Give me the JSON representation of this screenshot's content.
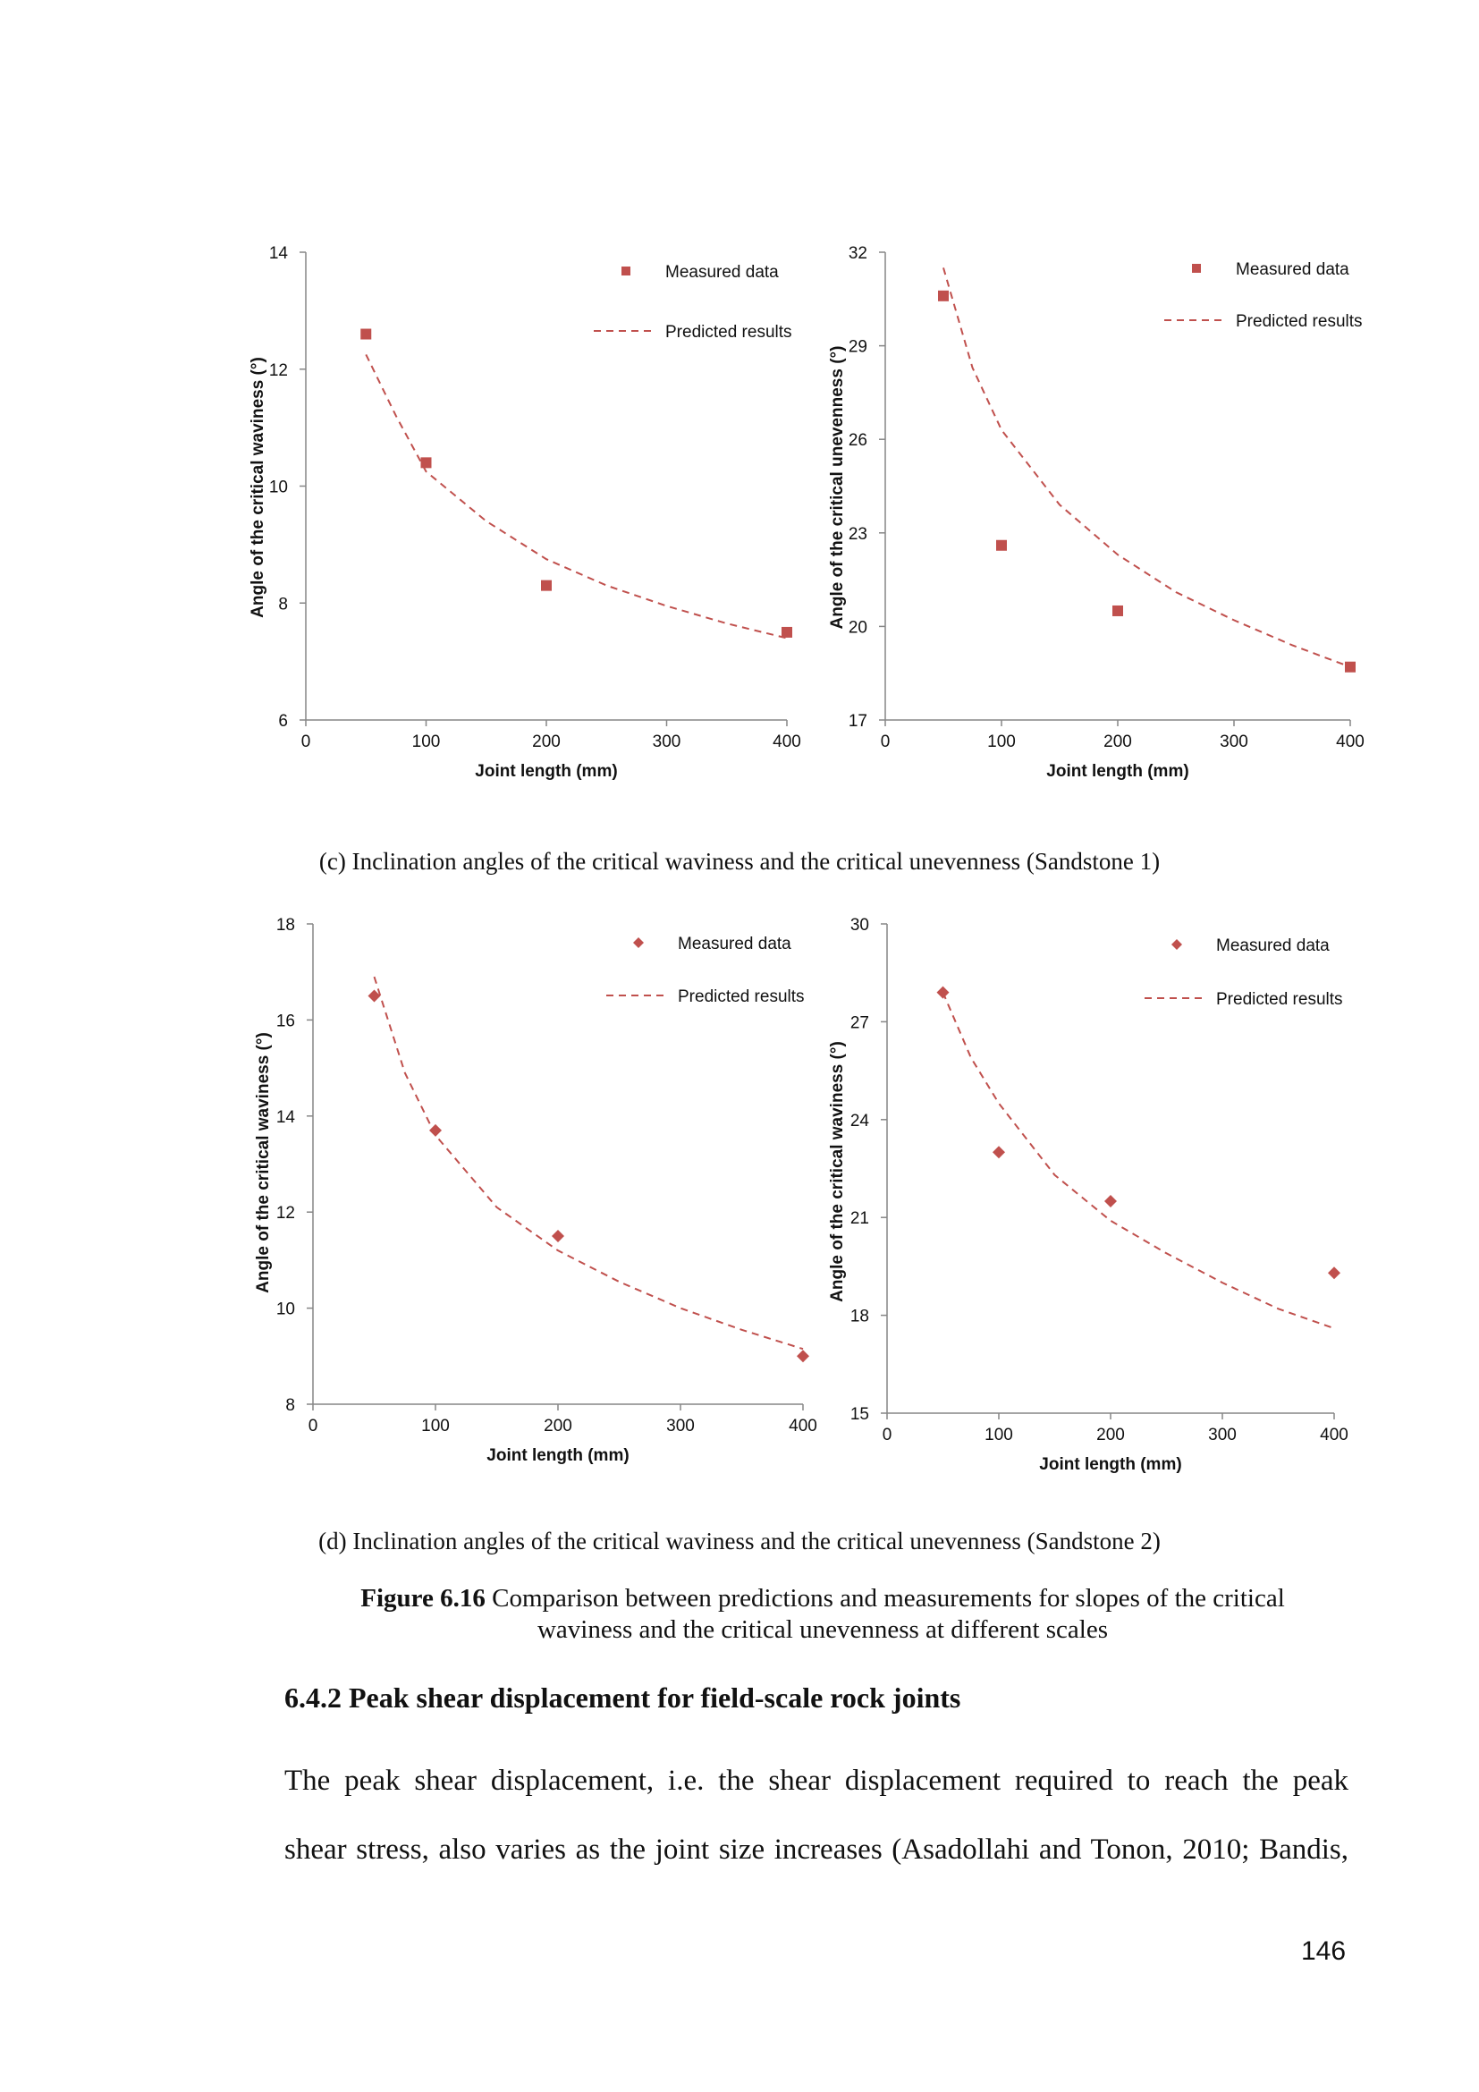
{
  "chart_data": [
    {
      "type": "scatter",
      "xlabel": "Joint length (mm)",
      "ylabel": "Angle of the critical waviness (°)",
      "xlim": [
        0,
        400
      ],
      "ylim": [
        6,
        14
      ],
      "xticks": [
        0,
        100,
        200,
        300,
        400
      ],
      "yticks": [
        6,
        8,
        10,
        12,
        14
      ],
      "marker": "square",
      "legend": {
        "measured": "Measured data",
        "predicted": "Predicted results",
        "position": "top-right"
      },
      "measured": {
        "x": [
          50,
          100,
          200,
          400
        ],
        "y": [
          12.6,
          10.4,
          8.3,
          7.5
        ]
      },
      "predicted": {
        "x": [
          50,
          75,
          100,
          150,
          200,
          250,
          300,
          350,
          400
        ],
        "y": [
          12.25,
          11.2,
          10.25,
          9.4,
          8.75,
          8.3,
          7.95,
          7.65,
          7.4
        ]
      }
    },
    {
      "type": "scatter",
      "xlabel": "Joint length (mm)",
      "ylabel": "Angle of the critical unevenness (°)",
      "xlim": [
        0,
        400
      ],
      "ylim": [
        17,
        32
      ],
      "xticks": [
        0,
        100,
        200,
        300,
        400
      ],
      "yticks": [
        17,
        20,
        23,
        26,
        29,
        32
      ],
      "marker": "square",
      "legend": {
        "measured": "Measured data",
        "predicted": "Predicted results",
        "position": "top-right"
      },
      "measured": {
        "x": [
          50,
          100,
          200,
          400
        ],
        "y": [
          30.6,
          22.6,
          20.5,
          18.7
        ]
      },
      "predicted": {
        "x": [
          50,
          75,
          100,
          150,
          200,
          250,
          300,
          350,
          400
        ],
        "y": [
          31.5,
          28.3,
          26.3,
          23.9,
          22.3,
          21.1,
          20.2,
          19.4,
          18.7
        ]
      }
    },
    {
      "type": "scatter",
      "xlabel": "Joint length (mm)",
      "ylabel": "Angle of the critical waviness (°)",
      "xlim": [
        0,
        400
      ],
      "ylim": [
        8,
        18
      ],
      "xticks": [
        0,
        100,
        200,
        300,
        400
      ],
      "yticks": [
        8,
        10,
        12,
        14,
        16,
        18
      ],
      "marker": "diamond",
      "legend": {
        "measured": "Measured data",
        "predicted": "Predicted results",
        "position": "top-right"
      },
      "measured": {
        "x": [
          50,
          100,
          200,
          400
        ],
        "y": [
          16.5,
          13.7,
          11.5,
          9.0
        ]
      },
      "predicted": {
        "x": [
          50,
          75,
          100,
          150,
          200,
          250,
          300,
          350,
          400
        ],
        "y": [
          16.9,
          14.9,
          13.6,
          12.1,
          11.2,
          10.55,
          10.0,
          9.55,
          9.15
        ]
      }
    },
    {
      "type": "scatter",
      "xlabel": "Joint length (mm)",
      "ylabel": "Angle of the critical waviness (°)",
      "xlim": [
        0,
        400
      ],
      "ylim": [
        15,
        30
      ],
      "xticks": [
        0,
        100,
        200,
        300,
        400
      ],
      "yticks": [
        15,
        18,
        21,
        24,
        27,
        30
      ],
      "marker": "diamond",
      "legend": {
        "measured": "Measured data",
        "predicted": "Predicted results",
        "position": "top-right"
      },
      "measured": {
        "x": [
          50,
          100,
          200,
          400
        ],
        "y": [
          27.9,
          23.0,
          21.5,
          19.3
        ]
      },
      "predicted": {
        "x": [
          50,
          75,
          100,
          150,
          200,
          250,
          300,
          350,
          400
        ],
        "y": [
          27.9,
          25.9,
          24.5,
          22.3,
          20.9,
          19.9,
          19.0,
          18.2,
          17.6
        ]
      }
    }
  ],
  "captions": {
    "c": "(c) Inclination angles of the critical waviness and the critical unevenness (Sandstone 1)",
    "d": "(d) Inclination angles of the critical waviness and the critical unevenness (Sandstone 2)"
  },
  "figure": {
    "label": "Figure 6.16",
    "line1": "Comparison between predictions and measurements for slopes of the critical",
    "line2": "waviness and the critical unevenness at different scales"
  },
  "section": {
    "heading": "6.4.2 Peak shear displacement for field-scale rock joints"
  },
  "paragraph": {
    "line1": "The peak shear displacement, i.e. the shear displacement required to reach the peak",
    "line2": "shear stress, also varies as the joint size increases (Asadollahi and Tonon, 2010; Bandis,"
  },
  "page_number": "146",
  "colors": {
    "series": "#c0504d",
    "axis": "#868686",
    "text": "#111111"
  }
}
